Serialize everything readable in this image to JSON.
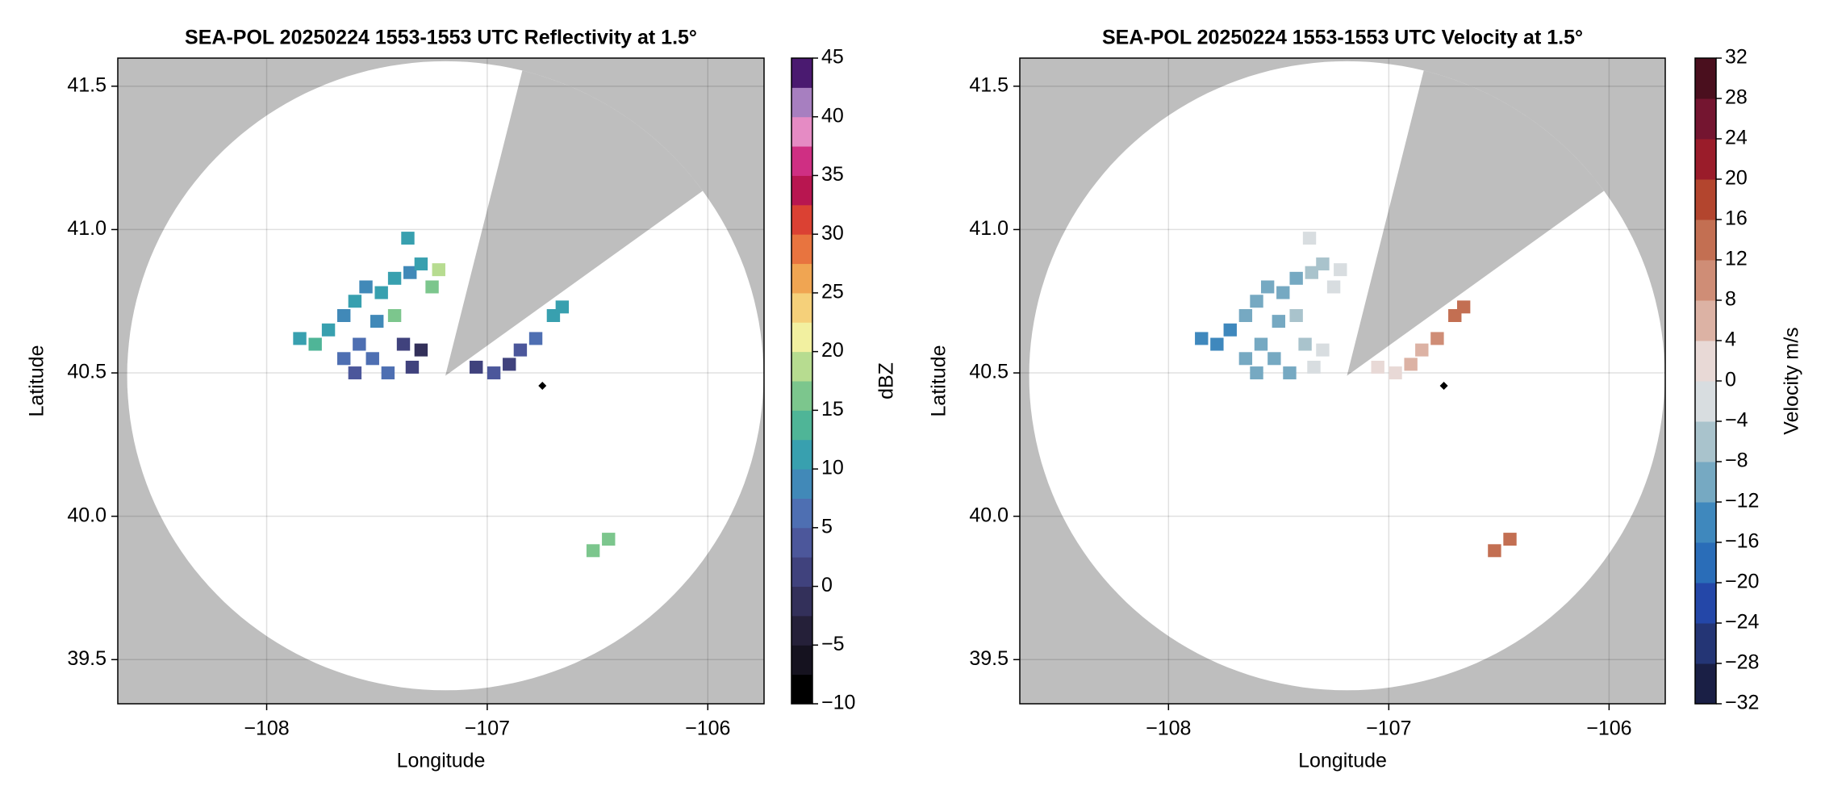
{
  "chart_data": [
    {
      "type": "ppi",
      "title": "SEA-POL 20250224 1553-1553 UTC Reflectivity at 1.5°",
      "x_label": "Longitude",
      "y_label": "Latitude",
      "xlim": [
        -108.675,
        -105.745
      ],
      "ylim": [
        39.346,
        41.598
      ],
      "xticks": [
        {
          "value": -108,
          "label": "−108"
        },
        {
          "value": -107,
          "label": "−107"
        },
        {
          "value": -106,
          "label": "−106"
        }
      ],
      "yticks": [
        39.5,
        {
          "value": 40,
          "label": "40.0"
        },
        40.5,
        {
          "value": 41,
          "label": "41.0"
        },
        41.5
      ],
      "grid": true,
      "radar": {
        "lon": -107.19,
        "lat": 40.49,
        "range_km": 122,
        "blocked_azimuths": [
          14,
          54
        ]
      },
      "site": {
        "lon": -106.75,
        "lat": 40.455
      },
      "colorbar": {
        "label": "dBZ",
        "clim": [
          -10,
          45
        ],
        "ticks": [
          {
            "value": -10,
            "label": "−10"
          },
          {
            "value": -5,
            "label": "−5"
          },
          0,
          5,
          10,
          15,
          20,
          25,
          30,
          35,
          40,
          45
        ],
        "colors": [
          "#000000",
          "#15121f",
          "#252039",
          "#33305a",
          "#40427d",
          "#4c579b",
          "#4e6fb2",
          "#4189b8",
          "#38a0af",
          "#4fb597",
          "#7cc68d",
          "#b7dc90",
          "#f2f0a0",
          "#f5d07a",
          "#f0a552",
          "#e8743f",
          "#db4133",
          "#b81650",
          "#cf2f83",
          "#e58bc4",
          "#a77fc0",
          "#4a1a70"
        ]
      },
      "echoes": [
        {
          "lon": -107.85,
          "lat": 40.62,
          "value": 12
        },
        {
          "lon": -107.78,
          "lat": 40.6,
          "value": 14
        },
        {
          "lon": -107.72,
          "lat": 40.65,
          "value": 10
        },
        {
          "lon": -107.65,
          "lat": 40.7,
          "value": 9
        },
        {
          "lon": -107.6,
          "lat": 40.75,
          "value": 11
        },
        {
          "lon": -107.55,
          "lat": 40.8,
          "value": 8
        },
        {
          "lon": -107.48,
          "lat": 40.78,
          "value": 10
        },
        {
          "lon": -107.42,
          "lat": 40.83,
          "value": 12
        },
        {
          "lon": -107.35,
          "lat": 40.85,
          "value": 9
        },
        {
          "lon": -107.3,
          "lat": 40.88,
          "value": 11
        },
        {
          "lon": -107.25,
          "lat": 40.8,
          "value": 17
        },
        {
          "lon": -107.22,
          "lat": 40.86,
          "value": 18
        },
        {
          "lon": -107.42,
          "lat": 40.7,
          "value": 16
        },
        {
          "lon": -107.5,
          "lat": 40.68,
          "value": 9
        },
        {
          "lon": -107.58,
          "lat": 40.6,
          "value": 7
        },
        {
          "lon": -107.52,
          "lat": 40.55,
          "value": 5
        },
        {
          "lon": -107.45,
          "lat": 40.5,
          "value": 6
        },
        {
          "lon": -107.38,
          "lat": 40.6,
          "value": 1
        },
        {
          "lon": -107.3,
          "lat": 40.58,
          "value": -1
        },
        {
          "lon": -107.34,
          "lat": 40.52,
          "value": 2
        },
        {
          "lon": -107.6,
          "lat": 40.5,
          "value": 4
        },
        {
          "lon": -107.65,
          "lat": 40.55,
          "value": 6
        },
        {
          "lon": -107.36,
          "lat": 40.97,
          "value": 12
        },
        {
          "lon": -107.05,
          "lat": 40.52,
          "value": 1
        },
        {
          "lon": -106.97,
          "lat": 40.5,
          "value": 3
        },
        {
          "lon": -106.9,
          "lat": 40.53,
          "value": 2
        },
        {
          "lon": -106.85,
          "lat": 40.58,
          "value": 4
        },
        {
          "lon": -106.78,
          "lat": 40.62,
          "value": 7
        },
        {
          "lon": -106.7,
          "lat": 40.7,
          "value": 10
        },
        {
          "lon": -106.66,
          "lat": 40.73,
          "value": 12
        },
        {
          "lon": -106.45,
          "lat": 39.92,
          "value": 17
        },
        {
          "lon": -106.52,
          "lat": 39.88,
          "value": 16
        }
      ]
    },
    {
      "type": "ppi",
      "title": "SEA-POL 20250224 1553-1553 UTC Velocity at 1.5°",
      "x_label": "Longitude",
      "y_label": "Latitude",
      "xlim": [
        -108.675,
        -105.745
      ],
      "ylim": [
        39.346,
        41.598
      ],
      "xticks": [
        {
          "value": -108,
          "label": "−108"
        },
        {
          "value": -107,
          "label": "−107"
        },
        {
          "value": -106,
          "label": "−106"
        }
      ],
      "yticks": [
        39.5,
        {
          "value": 40,
          "label": "40.0"
        },
        40.5,
        {
          "value": 41,
          "label": "41.0"
        },
        41.5
      ],
      "grid": true,
      "radar": {
        "lon": -107.19,
        "lat": 40.49,
        "range_km": 122,
        "blocked_azimuths": [
          14,
          54
        ]
      },
      "site": {
        "lon": -106.75,
        "lat": 40.455
      },
      "colorbar": {
        "label": "Velocity m/s",
        "clim": [
          -32,
          32
        ],
        "ticks": [
          {
            "value": -32,
            "label": "−32"
          },
          {
            "value": -28,
            "label": "−28"
          },
          {
            "value": -24,
            "label": "−24"
          },
          {
            "value": -20,
            "label": "−20"
          },
          {
            "value": -16,
            "label": "−16"
          },
          {
            "value": -12,
            "label": "−12"
          },
          {
            "value": -8,
            "label": "−8"
          },
          {
            "value": -4,
            "label": "−4"
          },
          0,
          4,
          8,
          12,
          16,
          20,
          24,
          28,
          32
        ],
        "colors": [
          "#1a1f45",
          "#243575",
          "#2447a8",
          "#2a6db8",
          "#3f88bd",
          "#76a9c2",
          "#a9c3cc",
          "#d8dde0",
          "#e8d9d6",
          "#dcb2a4",
          "#cf8d76",
          "#c36f52",
          "#b3452e",
          "#9a1c2a",
          "#741530",
          "#4a0f1e"
        ]
      },
      "echoes": [
        {
          "lon": -107.85,
          "lat": 40.62,
          "value": -14
        },
        {
          "lon": -107.78,
          "lat": 40.6,
          "value": -15
        },
        {
          "lon": -107.72,
          "lat": 40.65,
          "value": -13
        },
        {
          "lon": -107.65,
          "lat": 40.7,
          "value": -11
        },
        {
          "lon": -107.6,
          "lat": 40.75,
          "value": -10
        },
        {
          "lon": -107.55,
          "lat": 40.8,
          "value": -9
        },
        {
          "lon": -107.48,
          "lat": 40.78,
          "value": -10
        },
        {
          "lon": -107.42,
          "lat": 40.83,
          "value": -9
        },
        {
          "lon": -107.35,
          "lat": 40.85,
          "value": -7
        },
        {
          "lon": -107.3,
          "lat": 40.88,
          "value": -5
        },
        {
          "lon": -107.25,
          "lat": 40.8,
          "value": -2
        },
        {
          "lon": -107.22,
          "lat": 40.86,
          "value": -1
        },
        {
          "lon": -107.42,
          "lat": 40.7,
          "value": -5
        },
        {
          "lon": -107.5,
          "lat": 40.68,
          "value": -10
        },
        {
          "lon": -107.58,
          "lat": 40.6,
          "value": -12
        },
        {
          "lon": -107.52,
          "lat": 40.55,
          "value": -11
        },
        {
          "lon": -107.45,
          "lat": 40.5,
          "value": -10
        },
        {
          "lon": -107.38,
          "lat": 40.6,
          "value": -6
        },
        {
          "lon": -107.3,
          "lat": 40.58,
          "value": -4
        },
        {
          "lon": -107.34,
          "lat": 40.52,
          "value": -3
        },
        {
          "lon": -107.6,
          "lat": 40.5,
          "value": -11
        },
        {
          "lon": -107.65,
          "lat": 40.55,
          "value": -12
        },
        {
          "lon": -107.36,
          "lat": 40.97,
          "value": -1
        },
        {
          "lon": -107.05,
          "lat": 40.52,
          "value": 0
        },
        {
          "lon": -106.97,
          "lat": 40.5,
          "value": 2
        },
        {
          "lon": -106.9,
          "lat": 40.53,
          "value": 4
        },
        {
          "lon": -106.85,
          "lat": 40.58,
          "value": 6
        },
        {
          "lon": -106.78,
          "lat": 40.62,
          "value": 10
        },
        {
          "lon": -106.7,
          "lat": 40.7,
          "value": 14
        },
        {
          "lon": -106.66,
          "lat": 40.73,
          "value": 15
        },
        {
          "lon": -106.45,
          "lat": 39.92,
          "value": 14
        },
        {
          "lon": -106.52,
          "lat": 39.88,
          "value": 13
        }
      ]
    }
  ]
}
